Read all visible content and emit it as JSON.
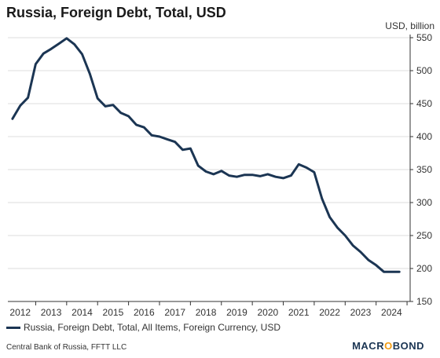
{
  "title": "Russia, Foreign Debt, Total, USD",
  "unit_label": "USD, billion",
  "legend": {
    "label": "Russia, Foreign Debt, Total, All Items, Foreign Currency, USD"
  },
  "source": "Central Bank of Russia, FFTT LLC",
  "brand": {
    "prefix": "MACR",
    "accent": "O",
    "suffix": "BOND"
  },
  "colors": {
    "series": "#1b3553",
    "grid": "#dddddd",
    "axis": "#333333",
    "accent": "#f39c12"
  },
  "chart_data": {
    "type": "line",
    "title": "Russia, Foreign Debt, Total, USD",
    "ylabel": "USD, billion",
    "ylim": [
      150,
      550
    ],
    "yticks": [
      150,
      200,
      250,
      300,
      350,
      400,
      450,
      500,
      550
    ],
    "xlim": [
      2011.6,
      2024.6
    ],
    "xticks": [
      2012,
      2013,
      2014,
      2015,
      2016,
      2017,
      2018,
      2019,
      2020,
      2021,
      2022,
      2023,
      2024
    ],
    "grid": "horizontal",
    "legend_position": "bottom",
    "y_axis_side": "right",
    "series": [
      {
        "name": "Russia, Foreign Debt, Total, All Items, Foreign Currency, USD",
        "x": [
          2011.75,
          2012.0,
          2012.25,
          2012.5,
          2012.75,
          2013.0,
          2013.25,
          2013.5,
          2013.75,
          2014.0,
          2014.25,
          2014.5,
          2014.75,
          2015.0,
          2015.25,
          2015.5,
          2015.75,
          2016.0,
          2016.25,
          2016.5,
          2016.75,
          2017.0,
          2017.25,
          2017.5,
          2017.75,
          2018.0,
          2018.25,
          2018.5,
          2018.75,
          2019.0,
          2019.25,
          2019.5,
          2019.75,
          2020.0,
          2020.25,
          2020.5,
          2020.75,
          2021.0,
          2021.25,
          2021.5,
          2021.75,
          2022.0,
          2022.25,
          2022.5,
          2022.75,
          2023.0,
          2023.25,
          2023.5,
          2023.75,
          2024.0,
          2024.25
        ],
        "values": [
          427,
          447,
          459,
          510,
          526,
          533,
          541,
          549,
          540,
          525,
          495,
          458,
          446,
          448,
          436,
          431,
          418,
          414,
          402,
          400,
          396,
          392,
          380,
          382,
          356,
          347,
          343,
          348,
          341,
          339,
          342,
          342,
          340,
          343,
          339,
          337,
          341,
          358,
          353,
          346,
          306,
          278,
          262,
          250,
          235,
          225,
          213,
          205,
          195,
          195,
          195
        ]
      }
    ]
  }
}
